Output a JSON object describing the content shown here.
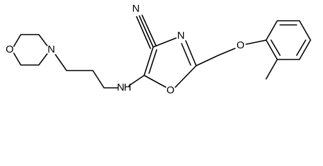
{
  "atoms": [
    {
      "label": "O"
    },
    {
      "label": "N"
    },
    {
      "label": "N"
    },
    {
      "label": "H"
    },
    {
      "label": "N"
    },
    {
      "label": "N"
    },
    {
      "label": "O"
    },
    {
      "label": "O"
    }
  ]
}
